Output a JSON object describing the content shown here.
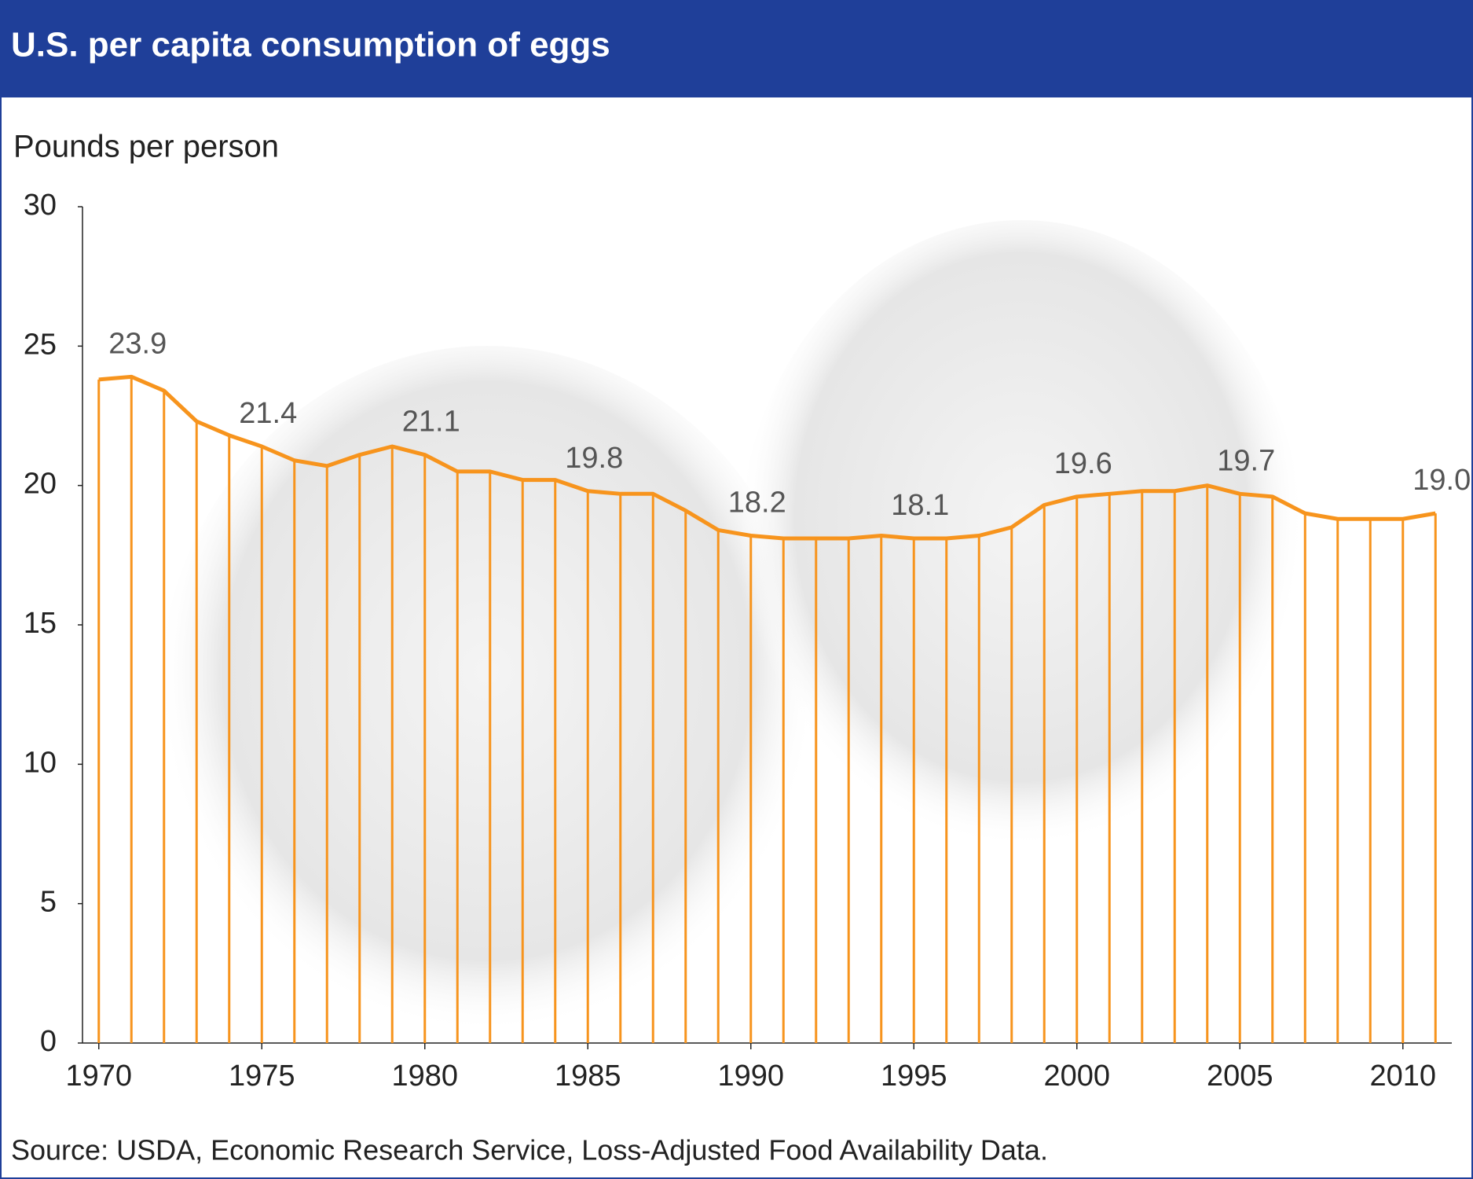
{
  "chart_data": {
    "type": "line",
    "title": "U.S. per capita consumption of eggs",
    "y_label": "Pounds per person",
    "source": "Source: USDA, Economic Research Service, Loss-Adjusted Food Availability Data.",
    "x": [
      1970,
      1971,
      1972,
      1973,
      1974,
      1975,
      1976,
      1977,
      1978,
      1979,
      1980,
      1981,
      1982,
      1983,
      1984,
      1985,
      1986,
      1987,
      1988,
      1989,
      1990,
      1991,
      1992,
      1993,
      1994,
      1995,
      1996,
      1997,
      1998,
      1999,
      2000,
      2001,
      2002,
      2003,
      2004,
      2005,
      2006,
      2007,
      2008,
      2009,
      2010,
      2011
    ],
    "series": [
      {
        "name": "Eggs",
        "color": "#f7941d",
        "values": [
          23.8,
          23.9,
          23.4,
          22.3,
          21.8,
          21.4,
          20.9,
          20.7,
          21.1,
          21.4,
          21.1,
          20.5,
          20.5,
          20.2,
          20.2,
          19.8,
          19.7,
          19.7,
          19.1,
          18.4,
          18.2,
          18.1,
          18.1,
          18.1,
          18.2,
          18.1,
          18.1,
          18.2,
          18.5,
          19.3,
          19.6,
          19.7,
          19.8,
          19.8,
          20.0,
          19.7,
          19.6,
          19.0,
          18.8,
          18.8,
          18.8,
          19.0
        ],
        "value_labels": [
          null,
          "23.9",
          null,
          null,
          null,
          "21.4",
          null,
          null,
          null,
          null,
          "21.1",
          null,
          null,
          null,
          null,
          "19.8",
          null,
          null,
          null,
          null,
          "18.2",
          null,
          null,
          null,
          null,
          "18.1",
          null,
          null,
          null,
          null,
          "19.6",
          null,
          null,
          null,
          null,
          "19.7",
          null,
          null,
          null,
          null,
          null,
          "19.0"
        ]
      }
    ],
    "xlim": [
      1969.5,
      2011.5
    ],
    "xticks": [
      1970,
      1975,
      1980,
      1985,
      1990,
      1995,
      2000,
      2005,
      2010
    ],
    "ylim": [
      0,
      30
    ],
    "yticks": [
      0,
      5,
      10,
      15,
      20,
      25,
      30
    ],
    "drop_lines": true,
    "title_color": "#1f3f99"
  }
}
